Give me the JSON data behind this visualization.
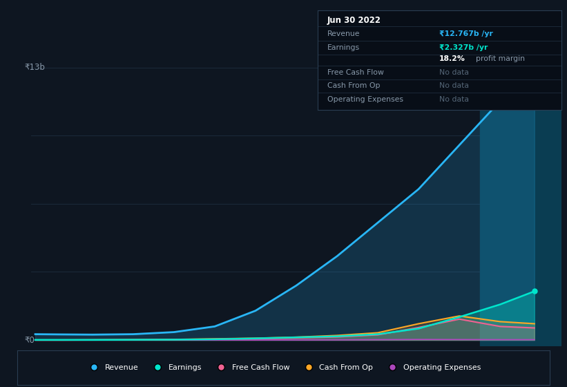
{
  "bg_color": "#0e1621",
  "plot_bg_color": "#0e1621",
  "grid_color": "#1c2a3a",
  "ylabel_top": "₹13b",
  "ylabel_zero": "₹0",
  "x_years": [
    2016.3,
    2016.6,
    2017.0,
    2017.5,
    2018.0,
    2018.5,
    2019.0,
    2019.5,
    2020.0,
    2020.5,
    2021.0,
    2021.5,
    2022.0,
    2022.42
  ],
  "revenue": [
    0.28,
    0.27,
    0.26,
    0.28,
    0.38,
    0.65,
    1.4,
    2.6,
    4.0,
    5.6,
    7.2,
    9.3,
    11.4,
    12.767
  ],
  "earnings": [
    0.01,
    0.01,
    0.01,
    0.015,
    0.02,
    0.04,
    0.08,
    0.13,
    0.18,
    0.28,
    0.55,
    1.1,
    1.7,
    2.327
  ],
  "free_cash_flow": [
    0.0,
    0.0,
    0.005,
    0.01,
    0.02,
    0.04,
    0.06,
    0.1,
    0.15,
    0.25,
    0.6,
    1.0,
    0.65,
    0.58
  ],
  "cash_from_op": [
    0.005,
    0.005,
    0.01,
    0.02,
    0.03,
    0.06,
    0.09,
    0.14,
    0.22,
    0.35,
    0.78,
    1.15,
    0.88,
    0.78
  ],
  "operating_expenses": [
    0.0,
    0.0,
    0.0,
    0.0,
    0.0,
    0.0,
    0.0,
    0.005,
    0.01,
    0.02,
    0.03,
    0.025,
    0.02,
    0.02
  ],
  "revenue_color": "#29b6f6",
  "earnings_color": "#00e5cc",
  "free_cash_flow_color": "#f06292",
  "cash_from_op_color": "#ffa726",
  "operating_expenses_color": "#ab47bc",
  "highlight_x_start": 2021.75,
  "highlight_x_end": 2022.75,
  "highlight_color": "#0a3d52",
  "tooltip_title": "Jun 30 2022",
  "tooltip_bg": "#080e17",
  "tooltip_border": "#2a3d52",
  "legend_items": [
    "Revenue",
    "Earnings",
    "Free Cash Flow",
    "Cash From Op",
    "Operating Expenses"
  ],
  "legend_colors": [
    "#29b6f6",
    "#00e5cc",
    "#f06292",
    "#ffa726",
    "#ab47bc"
  ],
  "ylim_min": -0.3,
  "ylim_max": 14.0,
  "xlim_start": 2016.25,
  "xlim_end": 2022.75,
  "xtick_positions": [
    2017,
    2018,
    2019,
    2020,
    2021,
    2022
  ]
}
